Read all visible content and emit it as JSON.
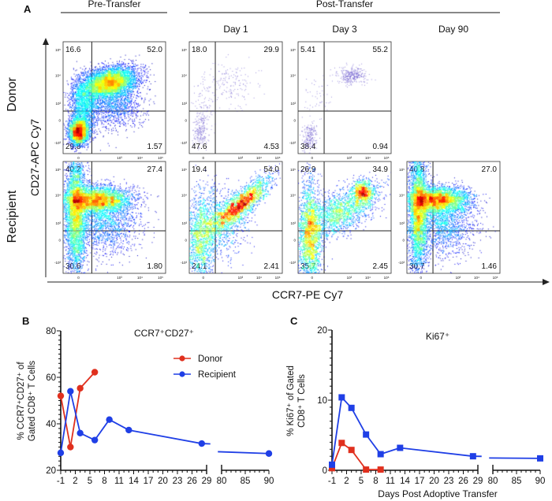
{
  "panel_a": {
    "letter": "A",
    "group_pre": "Pre-Transfer",
    "group_post": "Post-Transfer",
    "columns": [
      "",
      "Day 1",
      "Day 3",
      "Day 90"
    ],
    "rows": [
      "Donor",
      "Recipient"
    ],
    "y_axis_label": "CD27-APC Cy7",
    "x_axis_label": "CCR7-PE Cy7",
    "y_ticks": [
      "10⁵",
      "10⁴",
      "10³",
      "0",
      "-10³"
    ],
    "x_ticks": [
      "0",
      "10³",
      "10⁴",
      "10⁵"
    ],
    "plots": [
      {
        "row": "Donor",
        "column": "Pre-Transfer",
        "ul": "16.6",
        "ur": "52.0",
        "ll": "29.8",
        "lr": "1.57"
      },
      {
        "row": "Donor",
        "column": "Day 1",
        "ul": "18.0",
        "ur": "29.9",
        "ll": "47.6",
        "lr": "4.53"
      },
      {
        "row": "Donor",
        "column": "Day 3",
        "ul": "5.41",
        "ur": "55.2",
        "ll": "38.4",
        "lr": "0.94"
      },
      {
        "row": "Recipient",
        "column": "Pre-Transfer",
        "ul": "40.2",
        "ur": "27.4",
        "ll": "30.6",
        "lr": "1.80"
      },
      {
        "row": "Recipient",
        "column": "Day 1",
        "ul": "19.4",
        "ur": "54.0",
        "ll": "24.1",
        "lr": "2.41"
      },
      {
        "row": "Recipient",
        "column": "Day 3",
        "ul": "26.9",
        "ur": "34.9",
        "ll": "35.7",
        "lr": "2.45"
      },
      {
        "row": "Recipient",
        "column": "Day 90",
        "ul": "40.8",
        "ur": "27.0",
        "ll": "30.7",
        "lr": "1.46"
      }
    ]
  },
  "colors": {
    "donor": "#e0301e",
    "recipient": "#1f3fe6"
  },
  "chart_data": [
    {
      "panel": "B",
      "type": "line",
      "title": "CCR7⁺CD27⁺",
      "ylabel_line1": "% CCR7⁺CD27⁺ of",
      "ylabel_line2": "Gated CD8⁺ T Cells",
      "xlabel": "",
      "ylim": [
        20,
        80
      ],
      "y_ticks": [
        "20",
        "40",
        "60",
        "80"
      ],
      "x_ticks": [
        "-1",
        "2",
        "5",
        "8",
        "11",
        "14",
        "17",
        "20",
        "23",
        "26",
        "29",
        "80",
        "85",
        "90"
      ],
      "x_axis_break": [
        29,
        80
      ],
      "marker": "circle",
      "legend": "top-right",
      "series": [
        {
          "name": "Donor",
          "color": "#e0301e",
          "x": [
            -1,
            1,
            3,
            6
          ],
          "y": [
            52.0,
            30.0,
            55.3,
            62.2
          ]
        },
        {
          "name": "Recipient",
          "color": "#1f3fe6",
          "x": [
            -1,
            1,
            3,
            6,
            9,
            13,
            28,
            90
          ],
          "y": [
            27.5,
            54.0,
            36.0,
            33.0,
            41.8,
            37.3,
            31.5,
            27.2
          ]
        }
      ]
    },
    {
      "panel": "C",
      "type": "line",
      "title": "Ki67⁺",
      "ylabel_line1": "% Ki67⁺ of Gated",
      "ylabel_line2": "CD8⁺ T Cells",
      "xlabel": "Days Post Adoptive Transfer",
      "ylim": [
        0,
        20
      ],
      "y_ticks": [
        "0",
        "10",
        "20"
      ],
      "x_ticks": [
        "-1",
        "2",
        "5",
        "8",
        "11",
        "14",
        "17",
        "20",
        "23",
        "26",
        "29",
        "80",
        "85",
        "90"
      ],
      "x_axis_break": [
        29,
        80
      ],
      "marker": "square",
      "series": [
        {
          "name": "Donor",
          "color": "#e0301e",
          "x": [
            -1,
            1,
            3,
            6,
            9
          ],
          "y": [
            0.3,
            3.9,
            2.9,
            0.1,
            0.1
          ]
        },
        {
          "name": "Recipient",
          "color": "#1f3fe6",
          "x": [
            -1,
            1,
            3,
            6,
            9,
            13,
            28,
            90
          ],
          "y": [
            0.8,
            10.4,
            8.9,
            5.1,
            2.3,
            3.2,
            2.0,
            1.7
          ]
        }
      ]
    }
  ]
}
